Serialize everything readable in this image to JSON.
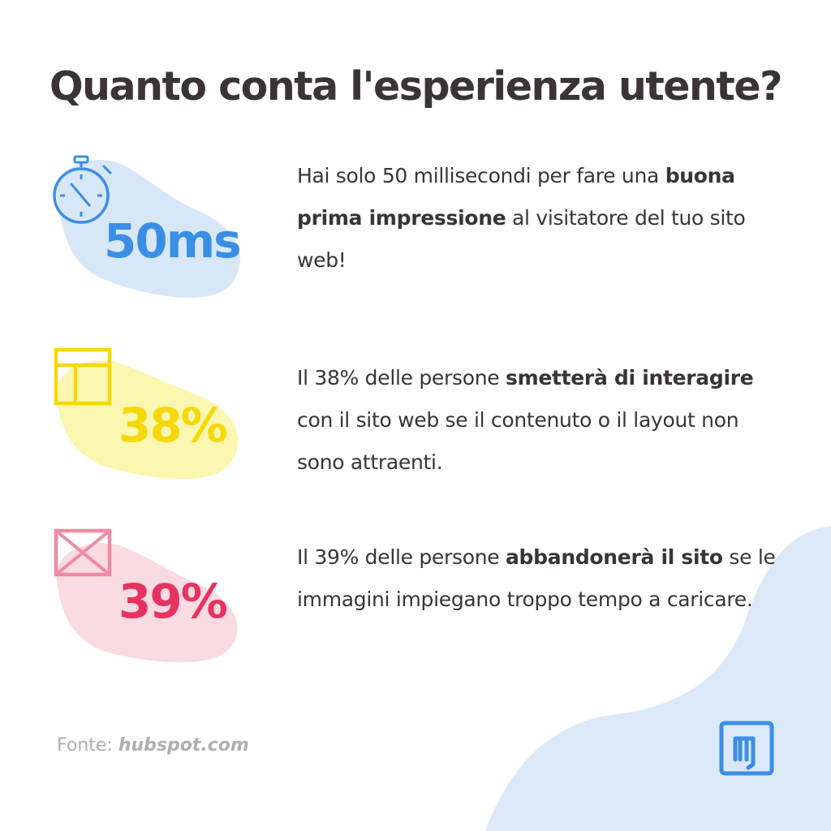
{
  "title": "Quanto conta l'esperienza utente?",
  "colors": {
    "title": "#3a3435",
    "body_text": "#3a3435",
    "source_text": "#b0aeaf",
    "blue_accent": "#3a8ee6",
    "blue_blob": "#d8e7f8",
    "yellow_accent": "#f6d80a",
    "yellow_blob": "#fbf6b0",
    "pink_accent": "#e8325f",
    "pink_blob": "#fadbe2",
    "corner_blob": "#dbe8f8"
  },
  "stats": [
    {
      "value": "50ms",
      "icon": "stopwatch-icon",
      "text_parts": [
        {
          "text": "Hai solo 50 millisecondi per fare una ",
          "bold": false
        },
        {
          "text": "buona prima impressione",
          "bold": true
        },
        {
          "text": " al visitatore del tuo sito web!",
          "bold": false
        }
      ]
    },
    {
      "value": "38%",
      "icon": "layout-icon",
      "text_parts": [
        {
          "text": "Il 38% delle persone ",
          "bold": false
        },
        {
          "text": "smetterà di interagire",
          "bold": true
        },
        {
          "text": " con il sito web se il contenuto o il layout non sono attraenti.",
          "bold": false
        }
      ]
    },
    {
      "value": "39%",
      "icon": "broken-image-icon",
      "text_parts": [
        {
          "text": "Il 39% delle persone ",
          "bold": false
        },
        {
          "text": "abbandonerà il sito",
          "bold": true
        },
        {
          "text": " se le immagini impiegano troppo tempo a caricare.",
          "bold": false
        }
      ]
    }
  ],
  "source": {
    "label": "Fonte:",
    "link": "hubspot.com"
  },
  "logo": {
    "icon": "brand-logo-icon"
  }
}
